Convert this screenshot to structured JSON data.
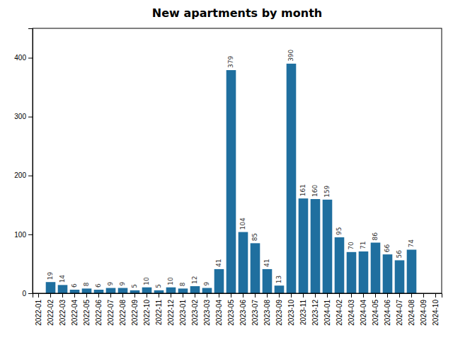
{
  "chart_data": {
    "type": "bar",
    "title": "New apartments by month",
    "categories": [
      "2022-01",
      "2022-02",
      "2022-03",
      "2022-04",
      "2022-05",
      "2022-06",
      "2022-07",
      "2022-08",
      "2022-09",
      "2022-10",
      "2022-11",
      "2022-12",
      "2023-01",
      "2023-02",
      "2023-03",
      "2023-04",
      "2023-05",
      "2023-06",
      "2023-07",
      "2023-08",
      "2023-09",
      "2023-10",
      "2023-11",
      "2023-12",
      "2024-01",
      "2024-02",
      "2024-03",
      "2024-04",
      "2024-05",
      "2024-06",
      "2024-07",
      "2024-08",
      "2024-09",
      "2024-10"
    ],
    "values": [
      0,
      19,
      14,
      6,
      8,
      6,
      9,
      9,
      5,
      10,
      5,
      10,
      8,
      12,
      9,
      41,
      379,
      104,
      85,
      41,
      13,
      390,
      161,
      160,
      159,
      95,
      70,
      71,
      86,
      66,
      56,
      74,
      0,
      0
    ],
    "color": "#1f6f9f",
    "ylim": [
      0,
      450
    ],
    "yticks": [
      0,
      100,
      200,
      300,
      400
    ],
    "grid": false,
    "data_labels": true
  }
}
